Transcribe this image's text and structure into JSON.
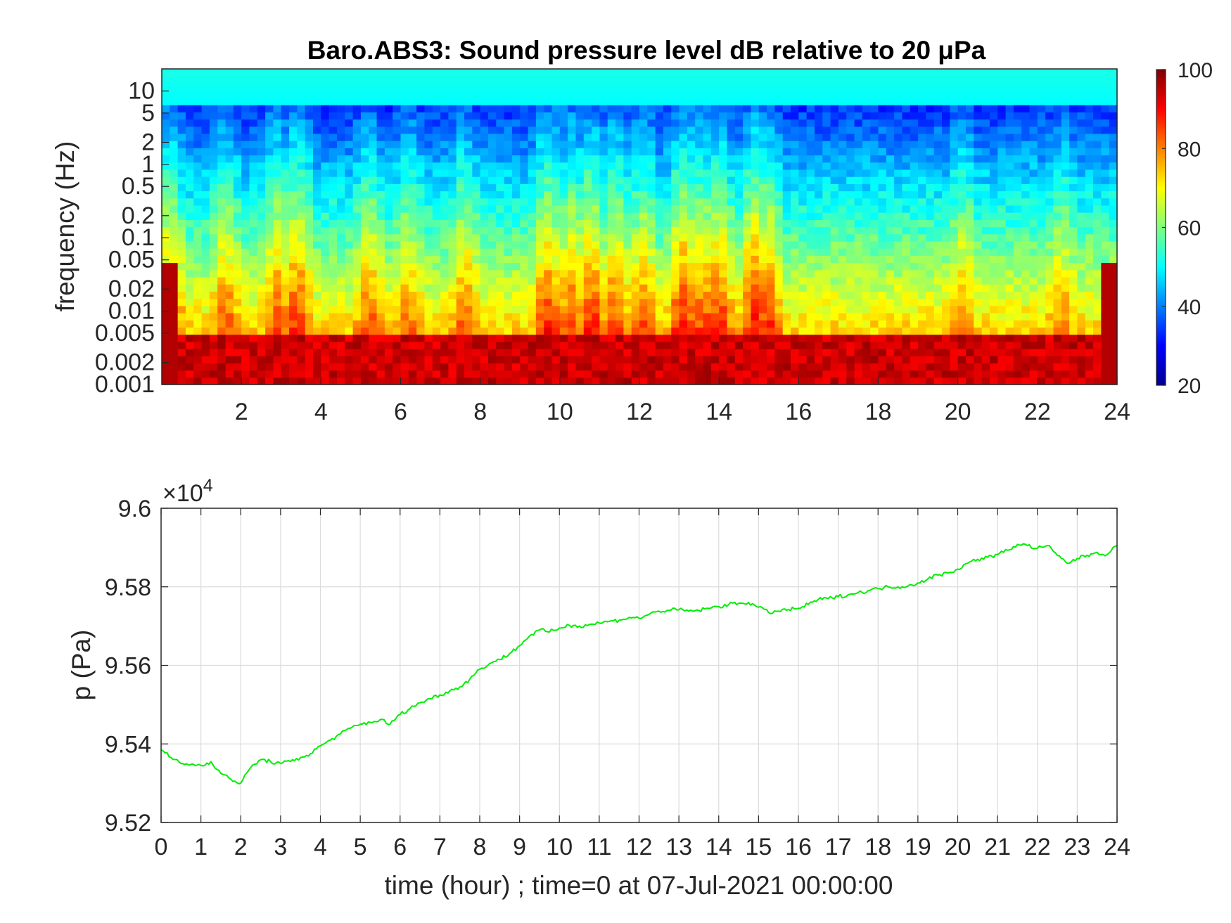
{
  "chart_data": [
    {
      "type": "heatmap",
      "title": "Baro.ABS3: Sound pressure level dB relative to 20 μPa",
      "ylabel": "frequency (Hz)",
      "xlim": [
        0,
        24
      ],
      "yscale": "log",
      "ylim": [
        0.001,
        20
      ],
      "xticks": [
        2,
        4,
        6,
        8,
        10,
        12,
        14,
        16,
        18,
        20,
        22,
        24
      ],
      "yticks": [
        {
          "value": 0.001,
          "label": "0.001"
        },
        {
          "value": 0.002,
          "label": "0.002"
        },
        {
          "value": 0.005,
          "label": "0.005"
        },
        {
          "value": 0.01,
          "label": "0.01"
        },
        {
          "value": 0.02,
          "label": "0.02"
        },
        {
          "value": 0.05,
          "label": "0.05"
        },
        {
          "value": 0.1,
          "label": "0.1"
        },
        {
          "value": 0.2,
          "label": "0.2"
        },
        {
          "value": 0.5,
          "label": "0.5"
        },
        {
          "value": 1,
          "label": "1"
        },
        {
          "value": 2,
          "label": "2"
        },
        {
          "value": 5,
          "label": "5"
        },
        {
          "value": 10,
          "label": "10"
        }
      ],
      "colorbar": {
        "range": [
          20,
          100
        ],
        "ticks": [
          20,
          40,
          60,
          80,
          100
        ],
        "colormap": "jet"
      },
      "grid": false
    },
    {
      "type": "line",
      "xlabel": "time (hour) ; time=0 at 07-Jul-2021 00:00:00",
      "ylabel": "p (Pa)",
      "y_multiplier": "×10",
      "y_multiplier_exp": "4",
      "xlim": [
        0,
        24
      ],
      "ylim": [
        95200,
        96000
      ],
      "xticks": [
        0,
        1,
        2,
        3,
        4,
        5,
        6,
        7,
        8,
        9,
        10,
        11,
        12,
        13,
        14,
        15,
        16,
        17,
        18,
        19,
        20,
        21,
        22,
        23,
        24
      ],
      "yticks": [
        {
          "value": 95200,
          "label": "9.52"
        },
        {
          "value": 95400,
          "label": "9.54"
        },
        {
          "value": 95600,
          "label": "9.56"
        },
        {
          "value": 95800,
          "label": "9.58"
        },
        {
          "value": 96000,
          "label": "9.6"
        }
      ],
      "grid": true,
      "series": [
        {
          "color": "#00ee00",
          "x": [
            0,
            0.25,
            0.5,
            0.75,
            1,
            1.25,
            1.5,
            1.75,
            2,
            2.25,
            2.5,
            2.75,
            3,
            3.25,
            3.5,
            3.75,
            4,
            4.25,
            4.5,
            4.75,
            5,
            5.25,
            5.5,
            5.75,
            6,
            6.25,
            6.5,
            6.75,
            7,
            7.25,
            7.5,
            7.75,
            8,
            8.25,
            8.5,
            8.75,
            9,
            9.25,
            9.5,
            9.75,
            10,
            10.25,
            10.5,
            10.75,
            11,
            11.25,
            11.5,
            11.75,
            12,
            12.25,
            12.5,
            12.75,
            13,
            13.25,
            13.5,
            13.75,
            14,
            14.25,
            14.5,
            14.75,
            15,
            15.25,
            15.5,
            15.75,
            16,
            16.25,
            16.5,
            16.75,
            17,
            17.25,
            17.5,
            17.75,
            18,
            18.25,
            18.5,
            18.75,
            19,
            19.25,
            19.5,
            19.75,
            20,
            20.25,
            20.5,
            20.75,
            21,
            21.25,
            21.5,
            21.75,
            22,
            22.25,
            22.5,
            22.75,
            23,
            23.25,
            23.5,
            23.75,
            24
          ],
          "y": [
            95385,
            95365,
            95350,
            95348,
            95345,
            95355,
            95325,
            95310,
            95300,
            95340,
            95360,
            95355,
            95350,
            95355,
            95365,
            95375,
            95395,
            95410,
            95425,
            95440,
            95450,
            95455,
            95462,
            95450,
            95475,
            95490,
            95505,
            95515,
            95525,
            95535,
            95545,
            95565,
            95590,
            95605,
            95615,
            95630,
            95650,
            95675,
            95690,
            95685,
            95695,
            95702,
            95700,
            95704,
            95708,
            95712,
            95715,
            95722,
            95720,
            95730,
            95738,
            95740,
            95742,
            95738,
            95740,
            95745,
            95750,
            95755,
            95758,
            95760,
            95748,
            95735,
            95738,
            95742,
            95745,
            95755,
            95768,
            95770,
            95775,
            95780,
            95785,
            95790,
            95795,
            95800,
            95800,
            95802,
            95810,
            95820,
            95830,
            95835,
            95845,
            95860,
            95870,
            95875,
            95882,
            95893,
            95908,
            95905,
            95898,
            95905,
            95880,
            95860,
            95872,
            95880,
            95888,
            95882,
            95905
          ]
        }
      ]
    }
  ]
}
